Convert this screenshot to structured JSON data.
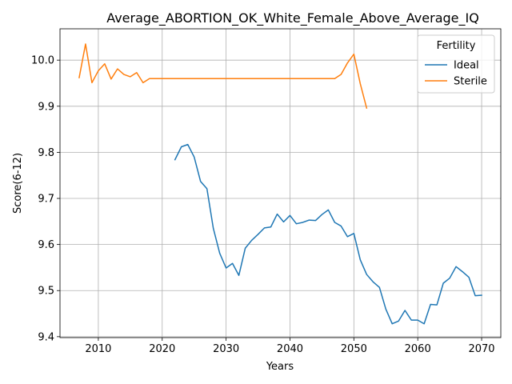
{
  "chart_data": {
    "type": "line",
    "title": "Average_ABORTION_OK_White_Female_Above_Average_IQ",
    "xlabel": "Years",
    "ylabel": "Score(6-12)",
    "xlim": [
      2004,
      2073
    ],
    "ylim": [
      9.398,
      10.068
    ],
    "xticks": [
      2010,
      2020,
      2030,
      2040,
      2050,
      2060,
      2070
    ],
    "yticks": [
      9.4,
      9.5,
      9.6,
      9.7,
      9.8,
      9.9,
      10.0
    ],
    "ytick_labels": [
      "9.4",
      "9.5",
      "9.6",
      "9.7",
      "9.8",
      "9.9",
      "10.0"
    ],
    "grid": true,
    "legend": {
      "title": "Fertility",
      "placement": "upper right"
    },
    "series": [
      {
        "name": "Ideal",
        "color": "#1f77b4",
        "x": [
          2022,
          2023,
          2024,
          2025,
          2026,
          2027,
          2028,
          2029,
          2030,
          2031,
          2032,
          2033,
          2034,
          2035,
          2036,
          2037,
          2038,
          2039,
          2040,
          2041,
          2042,
          2043,
          2044,
          2045,
          2046,
          2047,
          2048,
          2049,
          2050,
          2051,
          2052,
          2053,
          2054,
          2055,
          2056,
          2057,
          2058,
          2059,
          2060,
          2061,
          2062,
          2063,
          2064,
          2065,
          2066,
          2067,
          2068,
          2069,
          2070
        ],
        "y": [
          9.784,
          9.812,
          9.817,
          9.79,
          9.737,
          9.721,
          9.635,
          9.581,
          9.549,
          9.559,
          9.533,
          9.592,
          9.609,
          9.622,
          9.636,
          9.638,
          9.666,
          9.649,
          9.663,
          9.645,
          9.648,
          9.653,
          9.652,
          9.665,
          9.675,
          9.648,
          9.64,
          9.617,
          9.624,
          9.567,
          9.535,
          9.519,
          9.507,
          9.46,
          9.428,
          9.434,
          9.457,
          9.436,
          9.436,
          9.428,
          9.47,
          9.469,
          9.516,
          9.527,
          9.552,
          9.541,
          9.529,
          9.489,
          9.49
        ]
      },
      {
        "name": "Sterile",
        "color": "#ff7f0e",
        "x": [
          2007,
          2008,
          2009,
          2010,
          2011,
          2012,
          2013,
          2014,
          2015,
          2016,
          2017,
          2018,
          2019,
          2020,
          2021,
          2022,
          2023,
          2024,
          2025,
          2026,
          2027,
          2028,
          2029,
          2030,
          2031,
          2032,
          2033,
          2034,
          2035,
          2036,
          2037,
          2038,
          2039,
          2040,
          2041,
          2042,
          2043,
          2044,
          2045,
          2046,
          2047,
          2048,
          2049,
          2050,
          2051,
          2052
        ],
        "y": [
          9.962,
          10.035,
          9.951,
          9.977,
          9.992,
          9.959,
          9.981,
          9.969,
          9.964,
          9.973,
          9.951,
          9.96,
          9.96,
          9.96,
          9.96,
          9.96,
          9.96,
          9.96,
          9.96,
          9.96,
          9.96,
          9.96,
          9.96,
          9.96,
          9.96,
          9.96,
          9.96,
          9.96,
          9.96,
          9.96,
          9.96,
          9.96,
          9.96,
          9.96,
          9.96,
          9.96,
          9.96,
          9.96,
          9.96,
          9.96,
          9.96,
          9.969,
          9.994,
          10.013,
          9.949,
          9.896
        ]
      }
    ]
  }
}
